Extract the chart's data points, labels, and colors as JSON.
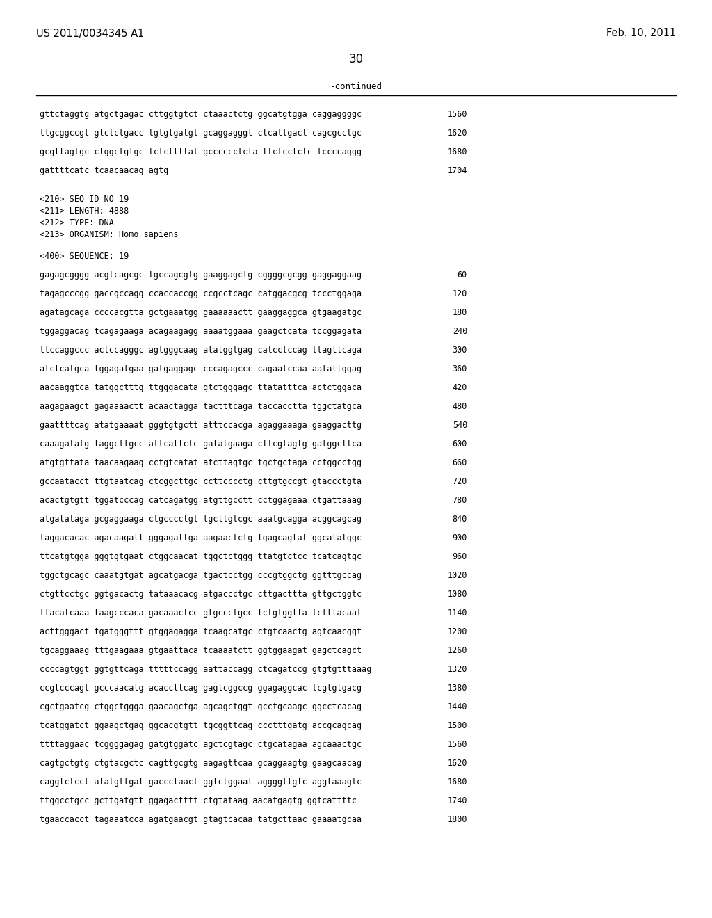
{
  "header_left": "US 2011/0034345 A1",
  "header_right": "Feb. 10, 2011",
  "page_number": "30",
  "continued_label": "-continued",
  "background_color": "#ffffff",
  "continued_section": [
    {
      "seq": "gttctaggtg atgctgagac cttggtgtct ctaaactctg ggcatgtgga caggaggggc",
      "num": "1560"
    },
    {
      "seq": "ttgcggccgt gtctctgacc tgtgtgatgt gcaggagggt ctcattgact cagcgcctgc",
      "num": "1620"
    },
    {
      "seq": "gcgttagtgc ctggctgtgc tctcttttat gcccccctcta ttctcctctc tccccaggg",
      "num": "1680"
    },
    {
      "seq": "gattttcatc tcaacaacag agtg",
      "num": "1704"
    }
  ],
  "meta_lines": [
    "<210> SEQ ID NO 19",
    "<211> LENGTH: 4888",
    "<212> TYPE: DNA",
    "<213> ORGANISM: Homo sapiens"
  ],
  "sequence_label": "<400> SEQUENCE: 19",
  "sequence_lines": [
    {
      "seq": "gagagcgggg acgtcagcgc tgccagcgtg gaaggagctg cggggcgcgg gaggaggaag",
      "num": "60"
    },
    {
      "seq": "tagagcccgg gaccgccagg ccaccaccgg ccgcctcagc catggacgcg tccctggaga",
      "num": "120"
    },
    {
      "seq": "agatagcaga ccccacgtta gctgaaatgg gaaaaaactt gaaggaggca gtgaagatgc",
      "num": "180"
    },
    {
      "seq": "tggaggacag tcagagaaga acagaagagg aaaatggaaa gaagctcata tccggagata",
      "num": "240"
    },
    {
      "seq": "ttccaggccc actccagggc agtgggcaag atatggtgag catcctccag ttagttcaga",
      "num": "300"
    },
    {
      "seq": "atctcatgca tggagatgaa gatgaggagc cccagagccc cagaatccaa aatattggag",
      "num": "360"
    },
    {
      "seq": "aacaaggtca tatggctttg ttgggacata gtctgggagc ttatatttca actctggaca",
      "num": "420"
    },
    {
      "seq": "aagagaagct gagaaaactt acaactagga tactttcaga taccacctta tggctatgca",
      "num": "480"
    },
    {
      "seq": "gaattttcag atatgaaaat gggtgtgctt atttccacga agaggaaaga gaaggacttg",
      "num": "540"
    },
    {
      "seq": "caaagatatg taggcttgcc attcattctc gatatgaaga cttcgtagtg gatggcttca",
      "num": "600"
    },
    {
      "seq": "atgtgttata taacaagaag cctgtcatat atcttagtgc tgctgctaga cctggcctgg",
      "num": "660"
    },
    {
      "seq": "gccaatacct ttgtaatcag ctcggcttgc ccttcccctg cttgtgccgt gtaccctgta",
      "num": "720"
    },
    {
      "seq": "acactgtgtt tggatcccag catcagatgg atgttgcctt cctggagaaa ctgattaaag",
      "num": "780"
    },
    {
      "seq": "atgatataga gcgaggaaga ctgcccctgt tgcttgtcgc aaatgcagga acggcagcag",
      "num": "840"
    },
    {
      "seq": "taggacacac agacaagatt gggagattga aagaactctg tgagcagtat ggcatatggc",
      "num": "900"
    },
    {
      "seq": "ttcatgtgga gggtgtgaat ctggcaacat tggctctggg ttatgtctcc tcatcagtgc",
      "num": "960"
    },
    {
      "seq": "tggctgcagc caaatgtgat agcatgacga tgactcctgg cccgtggctg ggtttgccag",
      "num": "1020"
    },
    {
      "seq": "ctgttcctgc ggtgacactg tataaacacg atgaccctgc cttgacttta gttgctggtc",
      "num": "1080"
    },
    {
      "seq": "ttacatcaaa taagcccaca gacaaactcc gtgccctgcc tctgtggtta tctttacaat",
      "num": "1140"
    },
    {
      "seq": "acttgggact tgatgggttt gtggagagga tcaagcatgc ctgtcaactg agtcaacggt",
      "num": "1200"
    },
    {
      "seq": "tgcaggaaag tttgaagaaa gtgaattaca tcaaaatctt ggtggaagat gagctcagct",
      "num": "1260"
    },
    {
      "seq": "ccccagtggt ggtgttcaga tttttccagg aattaccagg ctcagatccg gtgtgtttaaag",
      "num": "1320"
    },
    {
      "seq": "ccgtcccagt gcccaacatg acaccttcag gagtcggccg ggagaggcac tcgtgtgacg",
      "num": "1380"
    },
    {
      "seq": "cgctgaatcg ctggctggga gaacagctga agcagctggt gcctgcaagc ggcctcacag",
      "num": "1440"
    },
    {
      "seq": "tcatggatct ggaagctgag ggcacgtgtt tgcggttcag ccctttgatg accgcagcag",
      "num": "1500"
    },
    {
      "seq": "ttttaggaac tcggggagag gatgtggatc agctcgtagc ctgcatagaa agcaaactgc",
      "num": "1560"
    },
    {
      "seq": "cagtgctgtg ctgtacgctc cagttgcgtg aagagttcaa gcaggaagtg gaagcaacag",
      "num": "1620"
    },
    {
      "seq": "caggtctcct atatgttgat gaccctaact ggtctggaat aggggttgtc aggtaaagtc",
      "num": "1680"
    },
    {
      "seq": "ttggcctgcc gcttgatgtt ggagactttt ctgtataag aacatgagtg ggtcattttc",
      "num": "1740"
    },
    {
      "seq": "tgaaccacct tagaaatcca agatgaacgt gtagtcacaa tatgcttaac gaaaatgcaa",
      "num": "1800"
    }
  ]
}
